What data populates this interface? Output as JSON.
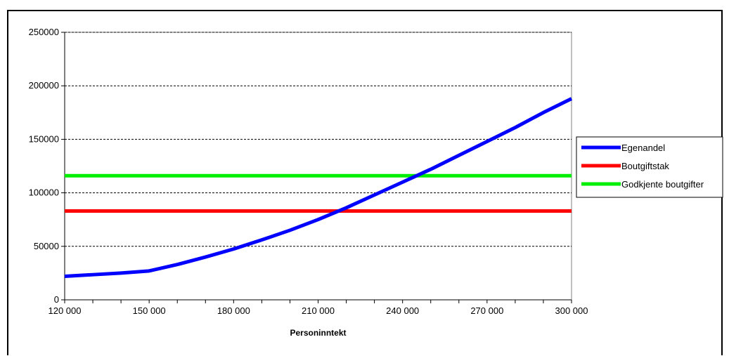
{
  "chart_data": {
    "type": "line",
    "title": "",
    "xlabel": "Personinntekt",
    "ylabel": "",
    "xlim": [
      120000,
      300000
    ],
    "ylim": [
      0,
      250000
    ],
    "x_ticks": [
      120000,
      150000,
      180000,
      210000,
      240000,
      270000,
      300000
    ],
    "x_tick_labels": [
      "120 000",
      "150 000",
      "180 000",
      "210 000",
      "240 000",
      "270 000",
      "300 000"
    ],
    "y_ticks": [
      0,
      50000,
      100000,
      150000,
      200000,
      250000
    ],
    "y_tick_labels": [
      "0",
      "50000",
      "100000",
      "150000",
      "200000",
      "250000"
    ],
    "grid": "horizontal dashed",
    "legend_position": "right",
    "series": [
      {
        "name": "Egenandel",
        "color": "#0000ff",
        "x": [
          120000,
          130000,
          140000,
          150000,
          160000,
          170000,
          180000,
          190000,
          200000,
          210000,
          220000,
          230000,
          240000,
          250000,
          260000,
          270000,
          280000,
          290000,
          300000
        ],
        "values": [
          22000,
          23500,
          25000,
          27000,
          33000,
          40000,
          47500,
          56000,
          65000,
          75000,
          86000,
          98000,
          110000,
          122000,
          135000,
          148000,
          161000,
          175000,
          188000
        ]
      },
      {
        "name": "Boutgiftstak",
        "color": "#ff0000",
        "x": [
          120000,
          300000
        ],
        "values": [
          83000,
          83000
        ]
      },
      {
        "name": "Godkjente boutgifter",
        "color": "#00ee00",
        "x": [
          120000,
          300000
        ],
        "values": [
          116000,
          116000
        ]
      }
    ]
  }
}
